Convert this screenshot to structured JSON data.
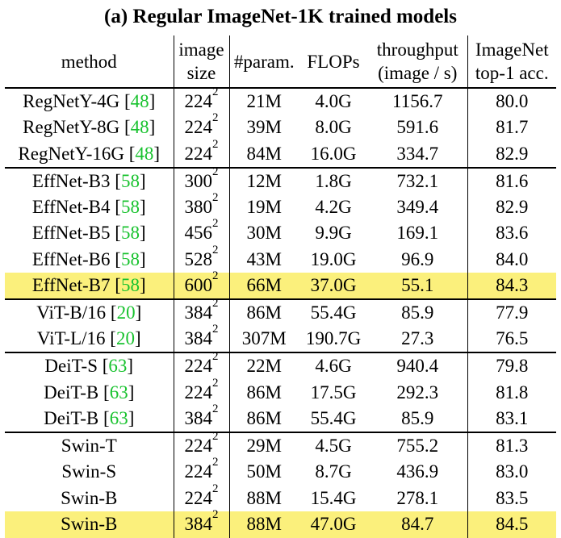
{
  "caption": "(a) Regular ImageNet-1K trained models",
  "headers": {
    "method": "method",
    "image_size": [
      "image",
      "size"
    ],
    "params": "#param.",
    "flops": "FLOPs",
    "throughput": [
      "throughput",
      "(image / s)"
    ],
    "acc": [
      "ImageNet",
      "top-1 acc."
    ]
  },
  "colors": {
    "highlight": "#fbf07c",
    "citation": "#18c22e"
  },
  "groups": [
    [
      {
        "name": "RegNetY-4G",
        "cite": "48",
        "size": "224",
        "exp": "2",
        "params": "21M",
        "flops": "4.0G",
        "throughput": "1156.7",
        "acc": "80.0",
        "highlight": false
      },
      {
        "name": "RegNetY-8G",
        "cite": "48",
        "size": "224",
        "exp": "2",
        "params": "39M",
        "flops": "8.0G",
        "throughput": "591.6",
        "acc": "81.7",
        "highlight": false
      },
      {
        "name": "RegNetY-16G",
        "cite": "48",
        "size": "224",
        "exp": "2",
        "params": "84M",
        "flops": "16.0G",
        "throughput": "334.7",
        "acc": "82.9",
        "highlight": false
      }
    ],
    [
      {
        "name": "EffNet-B3",
        "cite": "58",
        "size": "300",
        "exp": "2",
        "params": "12M",
        "flops": "1.8G",
        "throughput": "732.1",
        "acc": "81.6",
        "highlight": false
      },
      {
        "name": "EffNet-B4",
        "cite": "58",
        "size": "380",
        "exp": "2",
        "params": "19M",
        "flops": "4.2G",
        "throughput": "349.4",
        "acc": "82.9",
        "highlight": false
      },
      {
        "name": "EffNet-B5",
        "cite": "58",
        "size": "456",
        "exp": "2",
        "params": "30M",
        "flops": "9.9G",
        "throughput": "169.1",
        "acc": "83.6",
        "highlight": false
      },
      {
        "name": "EffNet-B6",
        "cite": "58",
        "size": "528",
        "exp": "2",
        "params": "43M",
        "flops": "19.0G",
        "throughput": "96.9",
        "acc": "84.0",
        "highlight": false
      },
      {
        "name": "EffNet-B7",
        "cite": "58",
        "size": "600",
        "exp": "2",
        "params": "66M",
        "flops": "37.0G",
        "throughput": "55.1",
        "acc": "84.3",
        "highlight": true
      }
    ],
    [
      {
        "name": "ViT-B/16",
        "cite": "20",
        "size": "384",
        "exp": "2",
        "params": "86M",
        "flops": "55.4G",
        "throughput": "85.9",
        "acc": "77.9",
        "highlight": false
      },
      {
        "name": "ViT-L/16",
        "cite": "20",
        "size": "384",
        "exp": "2",
        "params": "307M",
        "flops": "190.7G",
        "throughput": "27.3",
        "acc": "76.5",
        "highlight": false
      }
    ],
    [
      {
        "name": "DeiT-S",
        "cite": "63",
        "size": "224",
        "exp": "2",
        "params": "22M",
        "flops": "4.6G",
        "throughput": "940.4",
        "acc": "79.8",
        "highlight": false
      },
      {
        "name": "DeiT-B",
        "cite": "63",
        "size": "224",
        "exp": "2",
        "params": "86M",
        "flops": "17.5G",
        "throughput": "292.3",
        "acc": "81.8",
        "highlight": false
      },
      {
        "name": "DeiT-B",
        "cite": "63",
        "size": "384",
        "exp": "2",
        "params": "86M",
        "flops": "55.4G",
        "throughput": "85.9",
        "acc": "83.1",
        "highlight": false
      }
    ],
    [
      {
        "name": "Swin-T",
        "cite": null,
        "size": "224",
        "exp": "2",
        "params": "29M",
        "flops": "4.5G",
        "throughput": "755.2",
        "acc": "81.3",
        "highlight": false
      },
      {
        "name": "Swin-S",
        "cite": null,
        "size": "224",
        "exp": "2",
        "params": "50M",
        "flops": "8.7G",
        "throughput": "436.9",
        "acc": "83.0",
        "highlight": false
      },
      {
        "name": "Swin-B",
        "cite": null,
        "size": "224",
        "exp": "2",
        "params": "88M",
        "flops": "15.4G",
        "throughput": "278.1",
        "acc": "83.5",
        "highlight": false
      },
      {
        "name": "Swin-B",
        "cite": null,
        "size": "384",
        "exp": "2",
        "params": "88M",
        "flops": "47.0G",
        "throughput": "84.7",
        "acc": "84.5",
        "highlight": true
      }
    ]
  ]
}
